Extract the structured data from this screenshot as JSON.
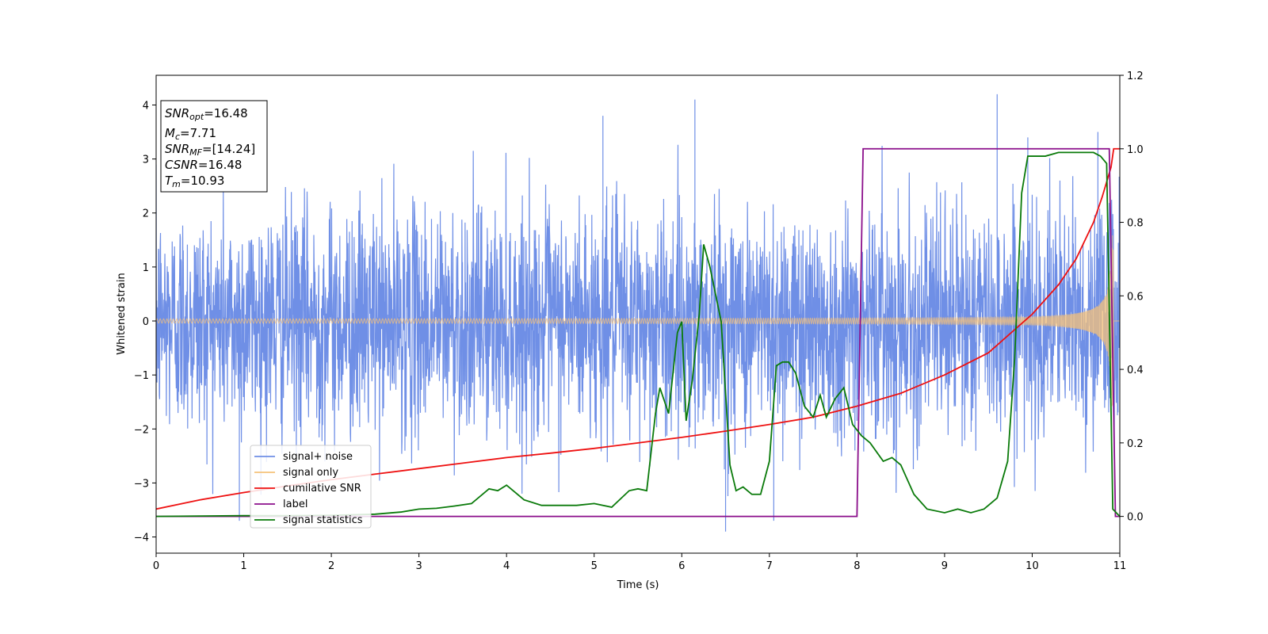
{
  "chart_data": {
    "type": "line",
    "xlabel": "Time (s)",
    "ylabel": "Whitened strain",
    "xlim": [
      0,
      11
    ],
    "ylim_left": [
      -4.3,
      4.55
    ],
    "ylim_right": [
      -0.1,
      1.2
    ],
    "xticks": [
      0,
      1,
      2,
      3,
      4,
      5,
      6,
      7,
      8,
      9,
      10,
      11
    ],
    "yticks_left": [
      -4,
      -3,
      -2,
      -1,
      0,
      1,
      2,
      3,
      4
    ],
    "yticks_right": [
      0.0,
      0.2,
      0.4,
      0.6,
      0.8,
      1.0,
      1.2
    ],
    "info_box": {
      "snr_opt_base": "SNR",
      "snr_opt_sub": "opt",
      "snr_opt_value": "=16.48",
      "mc_base": "M",
      "mc_sub": "c",
      "mc_value": "=7.71",
      "snr_mf_base": "SNR",
      "snr_mf_sub": "MF",
      "snr_mf_value": "=[14.24]",
      "csnr_base": "CSNR",
      "csnr_value": "=16.48",
      "tm_base": "T",
      "tm_sub": "m",
      "tm_value": "=10.93"
    },
    "series": [
      {
        "name": "signal+ noise",
        "axis": "left",
        "color": "#6f8fe6",
        "kind": "noise_plus_chirp",
        "noise_envelope": {
          "typical_abs": 2.4,
          "max": 4.2,
          "min": -3.9
        },
        "notable_peaks": [
          [
            0.95,
            -3.7
          ],
          [
            5.1,
            3.8
          ],
          [
            6.15,
            4.1
          ],
          [
            6.5,
            -3.9
          ],
          [
            7.05,
            -3.7
          ],
          [
            9.6,
            4.2
          ],
          [
            9.95,
            3.4
          ],
          [
            10.75,
            3.5
          ]
        ]
      },
      {
        "name": "signal only",
        "axis": "left",
        "color": "#f5c27a",
        "kind": "chirp",
        "t_merger": 10.93,
        "amplitude_start": 0.04,
        "amplitude_peak": 1.75
      },
      {
        "name": "cumilative SNR",
        "axis": "right",
        "color": "#ee1111",
        "x": [
          0,
          0.5,
          1,
          1.5,
          2,
          2.5,
          3,
          3.5,
          4,
          4.5,
          5,
          5.5,
          6,
          6.5,
          7,
          7.5,
          8,
          8.5,
          9,
          9.5,
          10,
          10.3,
          10.5,
          10.7,
          10.8,
          10.9,
          10.93,
          11
        ],
        "values": [
          0.02,
          0.045,
          0.065,
          0.083,
          0.1,
          0.115,
          0.13,
          0.145,
          0.16,
          0.172,
          0.185,
          0.2,
          0.215,
          0.232,
          0.25,
          0.27,
          0.3,
          0.335,
          0.385,
          0.445,
          0.55,
          0.63,
          0.7,
          0.8,
          0.87,
          0.95,
          1.0,
          1.0
        ]
      },
      {
        "name": "label",
        "axis": "right",
        "color": "#8b0f8b",
        "x": [
          0,
          8.0,
          8.07,
          10.88,
          10.95,
          11
        ],
        "values": [
          0,
          0,
          1,
          1,
          0,
          0
        ]
      },
      {
        "name": "signal statistics",
        "axis": "right",
        "color": "#0a7a0a",
        "x": [
          0,
          0.5,
          1,
          1.5,
          2,
          2.5,
          2.8,
          3,
          3.2,
          3.4,
          3.6,
          3.8,
          3.9,
          4.0,
          4.1,
          4.2,
          4.4,
          4.6,
          4.8,
          5.0,
          5.2,
          5.4,
          5.5,
          5.6,
          5.7,
          5.75,
          5.85,
          5.95,
          6.0,
          6.05,
          6.12,
          6.2,
          6.25,
          6.32,
          6.45,
          6.55,
          6.62,
          6.7,
          6.8,
          6.9,
          7.0,
          7.08,
          7.15,
          7.22,
          7.3,
          7.4,
          7.5,
          7.58,
          7.65,
          7.75,
          7.85,
          7.95,
          8.05,
          8.15,
          8.3,
          8.4,
          8.5,
          8.65,
          8.8,
          9.0,
          9.15,
          9.3,
          9.45,
          9.6,
          9.72,
          9.8,
          9.88,
          9.95,
          10.05,
          10.15,
          10.3,
          10.45,
          10.6,
          10.7,
          10.78,
          10.85,
          10.92,
          11
        ],
        "values": [
          0.0,
          0.001,
          0.002,
          0.002,
          0.003,
          0.006,
          0.012,
          0.02,
          0.022,
          0.028,
          0.035,
          0.075,
          0.07,
          0.085,
          0.065,
          0.045,
          0.03,
          0.03,
          0.03,
          0.035,
          0.025,
          0.07,
          0.075,
          0.07,
          0.28,
          0.35,
          0.28,
          0.5,
          0.53,
          0.26,
          0.37,
          0.55,
          0.74,
          0.68,
          0.53,
          0.14,
          0.07,
          0.08,
          0.06,
          0.06,
          0.15,
          0.41,
          0.42,
          0.42,
          0.39,
          0.3,
          0.27,
          0.33,
          0.27,
          0.32,
          0.35,
          0.25,
          0.22,
          0.2,
          0.15,
          0.16,
          0.14,
          0.06,
          0.02,
          0.01,
          0.02,
          0.01,
          0.02,
          0.05,
          0.15,
          0.43,
          0.88,
          0.98,
          0.98,
          0.98,
          0.99,
          0.99,
          0.99,
          0.99,
          0.98,
          0.96,
          0.02,
          0.0
        ]
      }
    ]
  }
}
